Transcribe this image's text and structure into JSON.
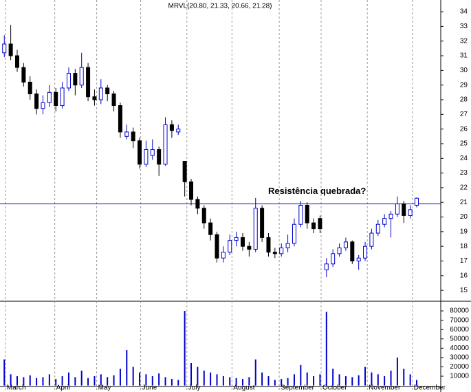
{
  "chart_data": {
    "type": "candlestick",
    "title": "MRVL(20.80, 21.33, 20.66, 21.28)",
    "annotation": "Resistência quebrada?",
    "resistance_level": 20.9,
    "up_color": "#0000cc",
    "down_color": "#000000",
    "volume_color": "#0000cc",
    "x": [
      0,
      3,
      6,
      9,
      12,
      15,
      18,
      21,
      24,
      27,
      30,
      33,
      36,
      39,
      42,
      45,
      48,
      51,
      54,
      57,
      60,
      63,
      66,
      69,
      72,
      75,
      78,
      81,
      84,
      87,
      90,
      93,
      96,
      99,
      102,
      105,
      108,
      111,
      114,
      117,
      120,
      123,
      126,
      129,
      132,
      135,
      138,
      141,
      144,
      147,
      150,
      153,
      156,
      159,
      162,
      165,
      168,
      171,
      174,
      177,
      180,
      183,
      186,
      189,
      192
    ],
    "open": [
      31.2,
      31.8,
      31.0,
      30.2,
      29.2,
      28.4,
      27.4,
      27.8,
      28.5,
      27.6,
      28.8,
      29.8,
      29.0,
      30.2,
      28.2,
      28.0,
      28.8,
      28.4,
      27.6,
      25.5,
      25.8,
      25.2,
      23.6,
      24.2,
      24.6,
      23.6,
      26.3,
      25.8,
      23.8,
      22.4,
      21.2,
      20.6,
      19.6,
      18.8,
      17.2,
      17.6,
      18.4,
      18.6,
      18.0,
      17.8,
      20.6,
      18.6,
      17.6,
      17.5,
      17.9,
      18.2,
      19.5,
      20.8,
      19.6,
      19.9,
      16.4,
      16.8,
      17.5,
      17.9,
      18.3,
      17.0,
      17.2,
      18.0,
      18.9,
      19.5,
      19.9,
      20.2,
      20.9,
      20.1,
      20.8
    ],
    "high": [
      32.4,
      33.1,
      31.4,
      30.5,
      29.6,
      28.7,
      28.3,
      29.0,
      28.8,
      29.2,
      30.2,
      30.1,
      31.2,
      30.5,
      28.7,
      29.4,
      29.0,
      28.6,
      27.8,
      26.3,
      26.1,
      25.4,
      25.2,
      25.3,
      24.8,
      26.8,
      26.6,
      26.3,
      23.8,
      22.6,
      21.4,
      20.8,
      19.9,
      19.0,
      18.0,
      18.8,
      19.0,
      18.9,
      18.3,
      21.3,
      20.8,
      18.9,
      17.9,
      18.2,
      18.8,
      19.9,
      21.1,
      21.0,
      19.9,
      20.1,
      17.2,
      17.8,
      18.2,
      18.6,
      18.4,
      17.4,
      18.3,
      19.2,
      19.8,
      20.2,
      20.4,
      21.4,
      21.1,
      20.8,
      21.33
    ],
    "low": [
      30.9,
      30.7,
      29.9,
      28.9,
      28.0,
      27.0,
      27.0,
      27.5,
      27.2,
      27.4,
      28.6,
      28.3,
      28.8,
      27.9,
      27.6,
      27.7,
      27.9,
      27.2,
      25.4,
      25.3,
      24.7,
      23.3,
      23.4,
      23.9,
      22.8,
      23.5,
      25.4,
      25.6,
      21.4,
      20.8,
      20.2,
      19.2,
      18.4,
      16.9,
      16.9,
      17.4,
      18.0,
      17.7,
      17.3,
      17.6,
      18.3,
      17.3,
      17.2,
      17.3,
      17.6,
      18.0,
      19.3,
      19.2,
      18.9,
      18.9,
      15.9,
      16.6,
      17.3,
      17.7,
      16.8,
      16.4,
      17.0,
      17.8,
      18.7,
      19.3,
      18.6,
      20.0,
      19.6,
      19.9,
      20.66
    ],
    "close": [
      31.8,
      31.0,
      30.2,
      29.2,
      28.4,
      27.4,
      27.8,
      28.5,
      27.6,
      28.8,
      29.8,
      29.0,
      30.2,
      28.2,
      28.0,
      28.8,
      28.4,
      27.6,
      25.8,
      25.8,
      25.2,
      23.6,
      24.6,
      24.6,
      23.6,
      26.3,
      25.9,
      26.0,
      22.4,
      21.2,
      20.6,
      19.6,
      18.8,
      17.2,
      17.6,
      18.4,
      18.6,
      18.0,
      17.8,
      20.6,
      18.6,
      17.6,
      17.5,
      17.9,
      18.2,
      19.5,
      20.8,
      19.6,
      19.2,
      19.2,
      16.8,
      17.5,
      17.9,
      18.3,
      17.0,
      17.2,
      18.0,
      18.9,
      19.5,
      19.9,
      20.2,
      20.9,
      20.1,
      20.5,
      21.28
    ],
    "volume": [
      28000,
      12000,
      10000,
      9000,
      11000,
      8000,
      9000,
      12000,
      7000,
      10000,
      14000,
      9000,
      16000,
      8000,
      10000,
      12000,
      9000,
      11000,
      18000,
      38000,
      20000,
      14000,
      12000,
      10000,
      13000,
      9000,
      7000,
      6000,
      80000,
      24000,
      20000,
      16000,
      14000,
      12000,
      10000,
      9000,
      8000,
      7000,
      9000,
      28000,
      14000,
      10000,
      6000,
      7000,
      8000,
      12000,
      22000,
      14000,
      10000,
      12000,
      79000,
      18000,
      12000,
      10000,
      9000,
      11000,
      20000,
      14000,
      12000,
      10000,
      16000,
      30000,
      18000,
      12000,
      6000
    ],
    "xlim": [
      -2,
      203.2
    ],
    "xticks": [
      {
        "value": 0.5,
        "label": "March"
      },
      {
        "value": 23.5,
        "label": "April"
      },
      {
        "value": 43,
        "label": "May"
      },
      {
        "value": 63.5,
        "label": "June"
      },
      {
        "value": 85,
        "label": "July"
      },
      {
        "value": 106,
        "label": "August"
      },
      {
        "value": 128,
        "label": "September"
      },
      {
        "value": 147.5,
        "label": "October"
      },
      {
        "value": 169,
        "label": "November"
      },
      {
        "value": 190,
        "label": "December"
      }
    ],
    "ylim": [
      14.35,
      34.52
    ],
    "yticks": [
      15,
      16,
      17,
      18,
      19,
      20,
      21,
      22,
      23,
      24,
      25,
      26,
      27,
      28,
      29,
      30,
      31,
      32,
      33,
      34
    ],
    "y2lim": [
      0,
      90000
    ],
    "y2ticks": [
      10000,
      20000,
      30000,
      40000,
      50000,
      60000,
      70000,
      80000
    ],
    "grid": true
  }
}
